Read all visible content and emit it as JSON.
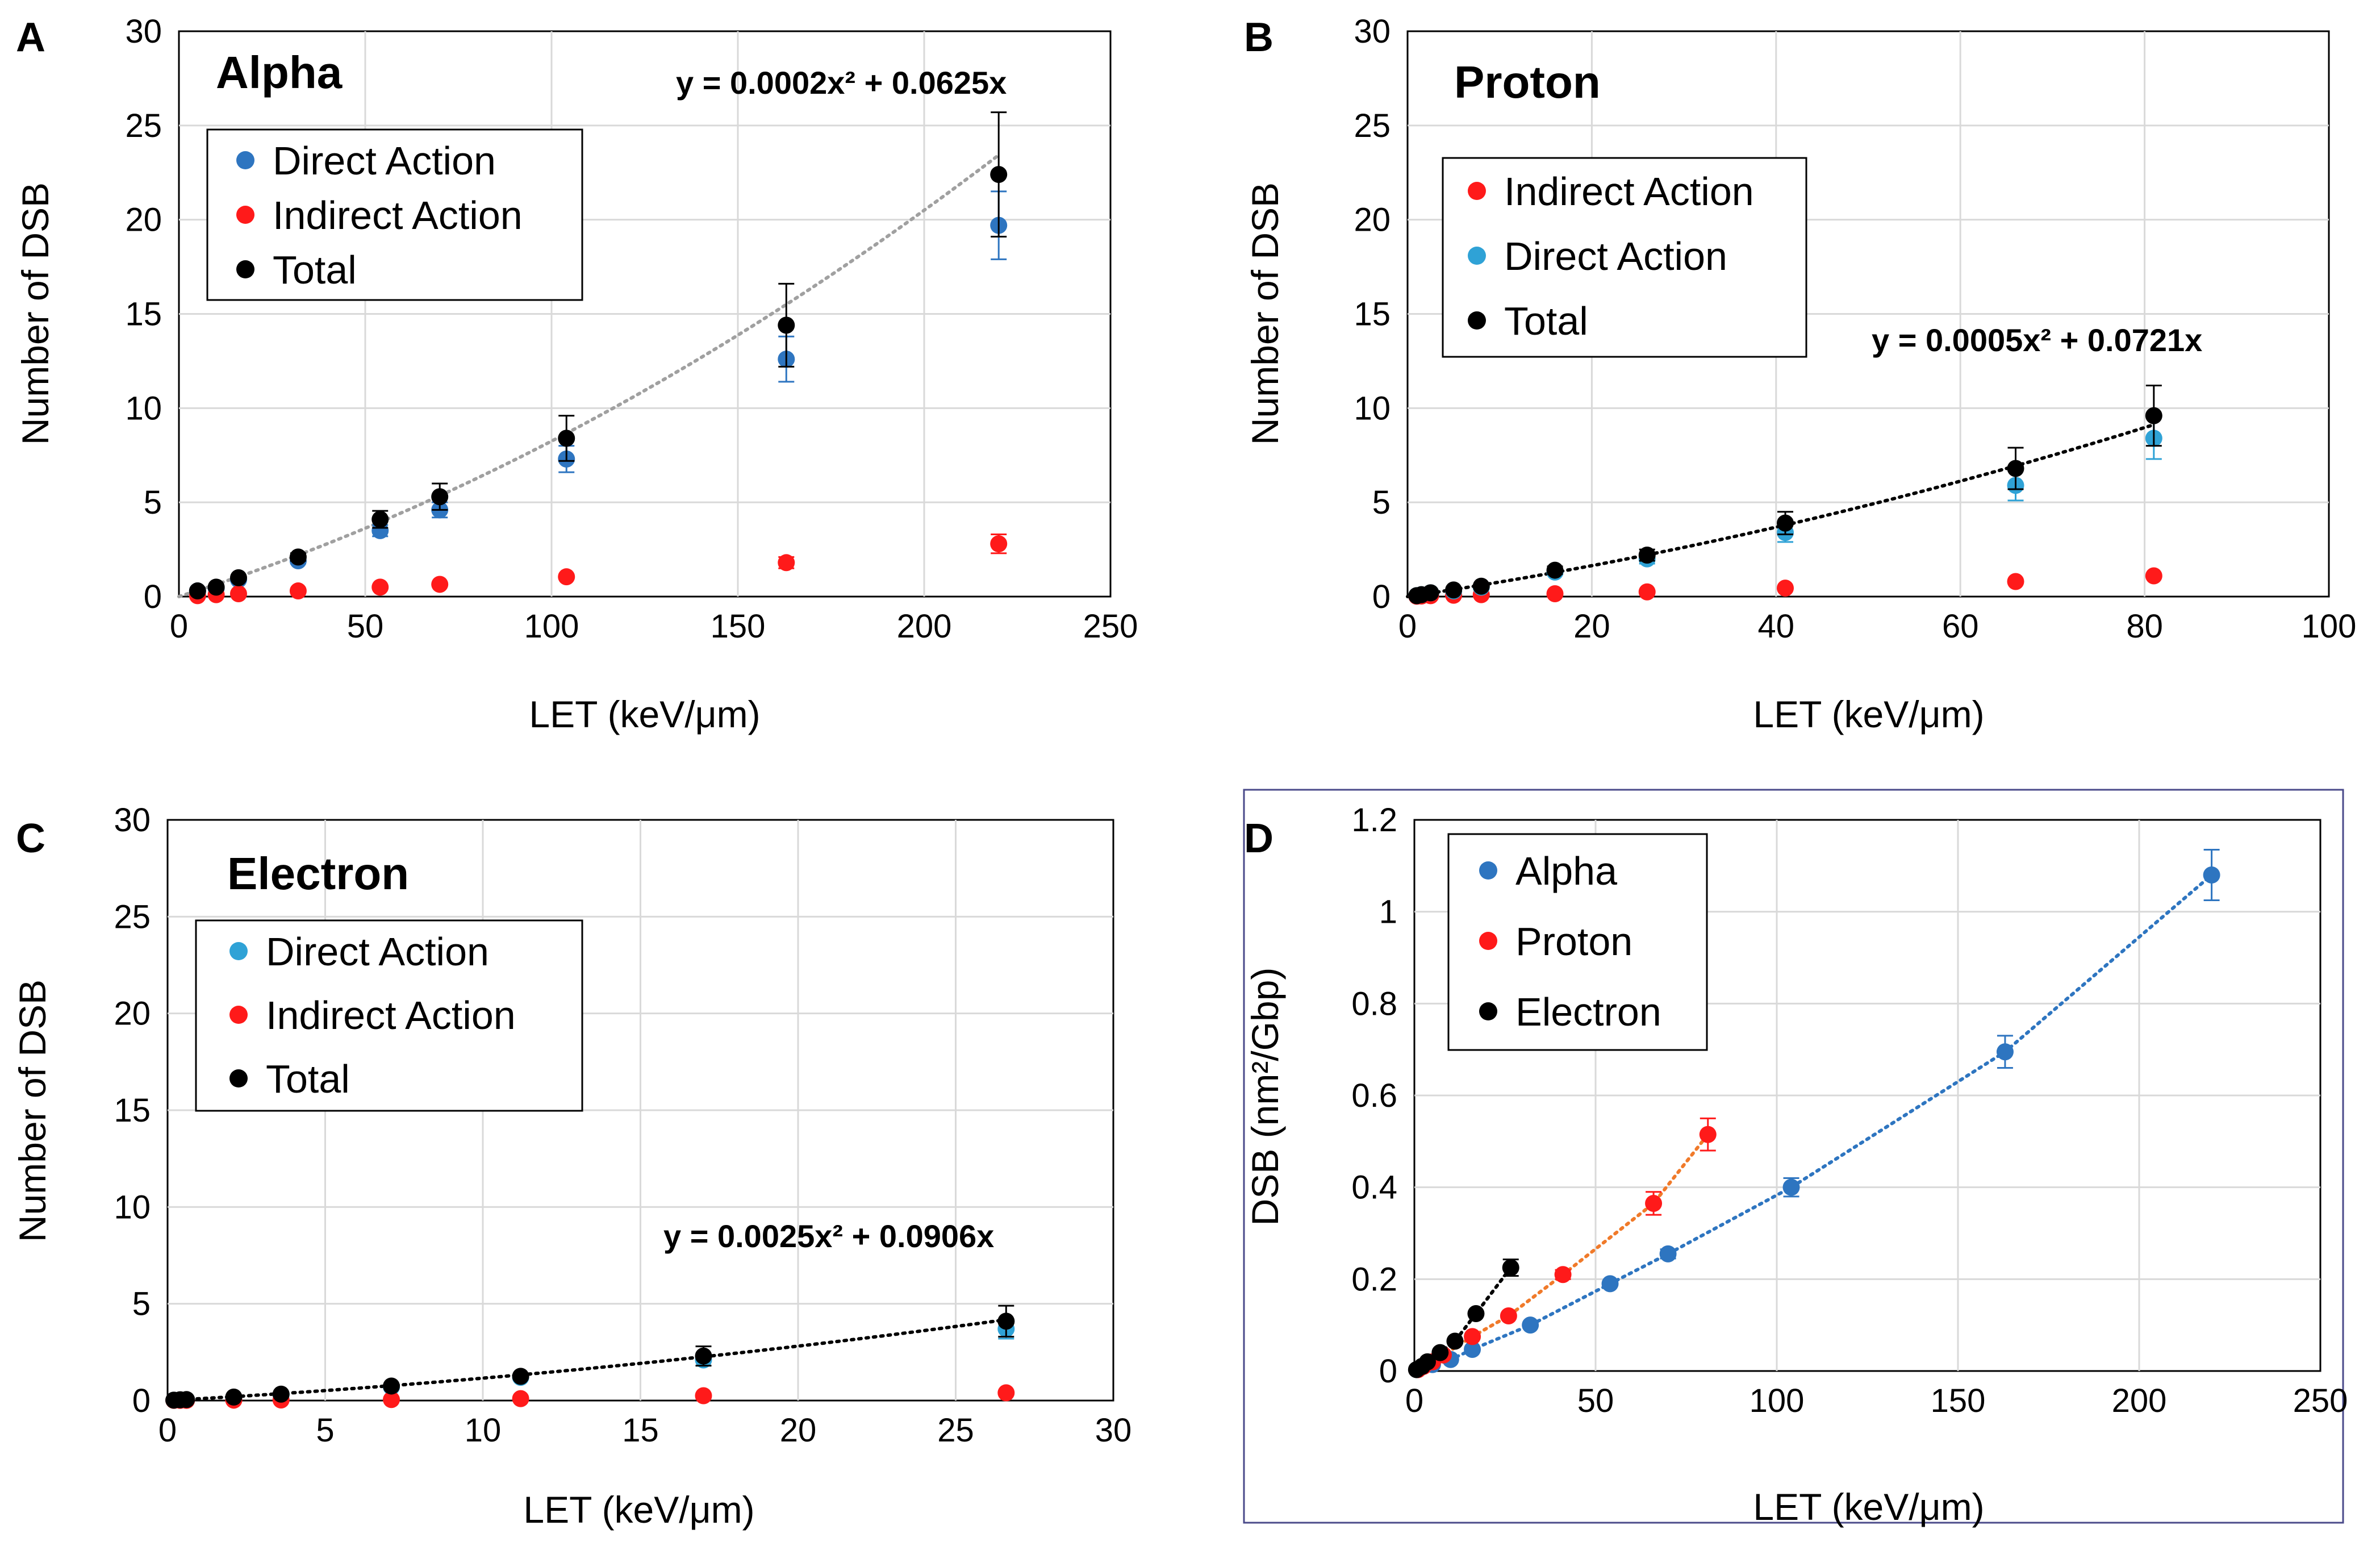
{
  "figure": {
    "x_label": "LET (keV/μm)",
    "y_label_counts": "Number of DSB",
    "y_label_density": "DSB (nm²/Gbp)"
  },
  "colors": {
    "alpha_blue": "#2e75c0",
    "direct_cyan": "#2fa2d6",
    "indirect_red": "#ff1a1a",
    "total_black": "#000000",
    "fit_gray": "#a0a0a0",
    "fit_black": "#000000",
    "fit_orange": "#f07a2a",
    "grid": "#d9d9d9",
    "frame_d": "#4a4a8a"
  },
  "chart_data": [
    {
      "panel": "A",
      "type": "scatter",
      "title": "Alpha",
      "equation": "y = 0.0002x² + 0.0625x",
      "fit": {
        "a": 0.0002,
        "b": 0.0625,
        "color": "#a0a0a0"
      },
      "xlabel": "LET (keV/μm)",
      "ylabel": "Number of DSB",
      "xlim": [
        0,
        250
      ],
      "ylim": [
        0,
        30
      ],
      "xticks": [
        0,
        50,
        100,
        150,
        200,
        250
      ],
      "yticks": [
        0,
        5,
        10,
        15,
        20,
        25,
        30
      ],
      "grid": true,
      "legend_position": "top-left",
      "legend": [
        "Direct Action",
        "Indirect Action",
        "Total"
      ],
      "series": [
        {
          "name": "Direct Action",
          "color": "#2e75c0",
          "x": [
            5,
            10,
            16,
            32,
            54,
            70,
            104,
            163,
            220
          ],
          "y": [
            0.3,
            0.45,
            0.9,
            1.9,
            3.5,
            4.6,
            7.3,
            12.6,
            19.7
          ],
          "err": [
            0,
            0,
            0,
            0.15,
            0.3,
            0.4,
            0.7,
            1.2,
            1.8
          ]
        },
        {
          "name": "Indirect Action",
          "color": "#ff1a1a",
          "x": [
            5,
            10,
            16,
            32,
            54,
            70,
            104,
            163,
            220
          ],
          "y": [
            0.05,
            0.1,
            0.15,
            0.3,
            0.5,
            0.65,
            1.05,
            1.8,
            2.8
          ],
          "err": [
            0,
            0,
            0,
            0,
            0,
            0,
            0,
            0.3,
            0.5
          ]
        },
        {
          "name": "Total",
          "color": "#000000",
          "x": [
            5,
            10,
            16,
            32,
            54,
            70,
            104,
            163,
            220
          ],
          "y": [
            0.3,
            0.5,
            1.0,
            2.1,
            4.1,
            5.3,
            8.4,
            14.4,
            22.4
          ],
          "err": [
            0,
            0,
            0,
            0.2,
            0.45,
            0.7,
            1.2,
            2.2,
            3.3
          ]
        }
      ]
    },
    {
      "panel": "B",
      "type": "scatter",
      "title": "Proton",
      "equation": "y = 0.0005x² + 0.0721x",
      "fit": {
        "a": 0.0005,
        "b": 0.0721,
        "color": "#000000"
      },
      "xlabel": "LET (keV/μm)",
      "ylabel": "Number of DSB",
      "xlim": [
        0,
        100
      ],
      "ylim": [
        0,
        30
      ],
      "xticks": [
        0,
        20,
        40,
        60,
        80,
        100
      ],
      "yticks": [
        0,
        5,
        10,
        15,
        20,
        25,
        30
      ],
      "grid": true,
      "legend_position": "top-left",
      "legend": [
        "Indirect Action",
        "Direct Action",
        "Total"
      ],
      "series": [
        {
          "name": "Indirect Action",
          "color": "#ff1a1a",
          "x": [
            1,
            1.5,
            2.5,
            5,
            8,
            16,
            26,
            41,
            66,
            81
          ],
          "y": [
            0.02,
            0.03,
            0.05,
            0.07,
            0.1,
            0.15,
            0.25,
            0.45,
            0.8,
            1.1
          ],
          "err": [
            0,
            0,
            0,
            0,
            0,
            0,
            0,
            0,
            0,
            0
          ]
        },
        {
          "name": "Direct Action",
          "color": "#2fa2d6",
          "x": [
            1,
            1.5,
            2.5,
            5,
            8,
            16,
            26,
            41,
            66,
            81
          ],
          "y": [
            0.05,
            0.1,
            0.2,
            0.3,
            0.5,
            1.3,
            2.0,
            3.4,
            5.9,
            8.4
          ],
          "err": [
            0,
            0,
            0,
            0,
            0,
            0.15,
            0.25,
            0.5,
            0.8,
            1.1
          ]
        },
        {
          "name": "Total",
          "color": "#000000",
          "x": [
            1,
            1.5,
            2.5,
            5,
            8,
            16,
            26,
            41,
            66,
            81
          ],
          "y": [
            0.05,
            0.1,
            0.2,
            0.35,
            0.55,
            1.4,
            2.2,
            3.9,
            6.8,
            9.6
          ],
          "err": [
            0,
            0,
            0,
            0,
            0,
            0.2,
            0.3,
            0.6,
            1.1,
            1.6
          ]
        }
      ]
    },
    {
      "panel": "C",
      "type": "scatter",
      "title": "Electron",
      "equation": "y = 0.0025x² + 0.0906x",
      "fit": {
        "a": 0.0025,
        "b": 0.0906,
        "color": "#000000"
      },
      "xlabel": "LET (keV/μm)",
      "ylabel": "Number of DSB",
      "xlim": [
        0,
        30
      ],
      "ylim": [
        0,
        30
      ],
      "xticks": [
        0,
        5,
        10,
        15,
        20,
        25,
        30
      ],
      "yticks": [
        0,
        5,
        10,
        15,
        20,
        25,
        30
      ],
      "grid": true,
      "legend_position": "top-left",
      "legend": [
        "Direct Action",
        "Indirect Action",
        "Total"
      ],
      "series": [
        {
          "name": "Direct Action",
          "color": "#2fa2d6",
          "x": [
            0.2,
            0.4,
            0.6,
            2.1,
            3.6,
            7.1,
            11.2,
            17.0,
            26.6
          ],
          "y": [
            0.02,
            0.03,
            0.04,
            0.15,
            0.3,
            0.7,
            1.2,
            2.1,
            3.7
          ],
          "err": [
            0,
            0,
            0,
            0,
            0,
            0,
            0,
            0.3,
            0.5
          ]
        },
        {
          "name": "Indirect Action",
          "color": "#ff1a1a",
          "x": [
            0.2,
            0.4,
            0.6,
            2.1,
            3.6,
            7.1,
            11.2,
            17.0,
            26.6
          ],
          "y": [
            0.01,
            0.01,
            0.01,
            0.02,
            0.03,
            0.05,
            0.1,
            0.25,
            0.4
          ],
          "err": [
            0,
            0,
            0,
            0,
            0,
            0,
            0,
            0,
            0
          ]
        },
        {
          "name": "Total",
          "color": "#000000",
          "x": [
            0.2,
            0.4,
            0.6,
            2.1,
            3.6,
            7.1,
            11.2,
            17.0,
            26.6
          ],
          "y": [
            0.02,
            0.04,
            0.05,
            0.18,
            0.33,
            0.75,
            1.25,
            2.3,
            4.1
          ],
          "err": [
            0,
            0,
            0,
            0,
            0,
            0,
            0,
            0.5,
            0.8
          ]
        }
      ]
    },
    {
      "panel": "D",
      "type": "scatter",
      "title": "",
      "xlabel": "LET (keV/μm)",
      "ylabel": "DSB (nm²/Gbp)",
      "xlim": [
        0,
        250
      ],
      "ylim": [
        0,
        1.2
      ],
      "xticks": [
        0,
        50,
        100,
        150,
        200,
        250
      ],
      "yticks": [
        0,
        0.2,
        0.4,
        0.6,
        0.8,
        1,
        1.2
      ],
      "grid": true,
      "legend_position": "top-left",
      "legend": [
        "Alpha",
        "Proton",
        "Electron"
      ],
      "series": [
        {
          "name": "Alpha",
          "color": "#2e75c0",
          "line_color": "#2e75c0",
          "x": [
            5,
            10,
            16,
            32,
            54,
            70,
            104,
            163,
            220
          ],
          "y": [
            0.014,
            0.025,
            0.047,
            0.1,
            0.19,
            0.255,
            0.4,
            0.695,
            1.08
          ],
          "err": [
            0,
            0,
            0,
            0,
            0,
            0.01,
            0.02,
            0.035,
            0.055
          ]
        },
        {
          "name": "Proton",
          "color": "#ff1a1a",
          "line_color": "#f07a2a",
          "x": [
            1,
            2.5,
            5,
            8,
            16,
            26,
            41,
            66,
            81
          ],
          "y": [
            0.003,
            0.01,
            0.02,
            0.035,
            0.075,
            0.12,
            0.21,
            0.365,
            0.515
          ],
          "err": [
            0,
            0,
            0,
            0,
            0,
            0,
            0.01,
            0.025,
            0.035
          ]
        },
        {
          "name": "Electron",
          "color": "#000000",
          "line_color": "#000000",
          "x": [
            0.6,
            2.1,
            3.6,
            7.1,
            11.2,
            17.0,
            26.6
          ],
          "y": [
            0.003,
            0.01,
            0.02,
            0.04,
            0.065,
            0.125,
            0.225
          ],
          "err": [
            0,
            0,
            0,
            0,
            0,
            0,
            0.018
          ]
        }
      ]
    }
  ]
}
